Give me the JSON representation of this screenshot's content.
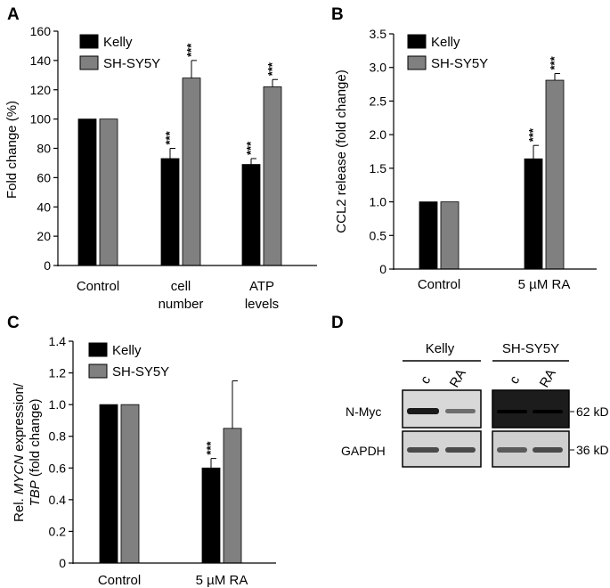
{
  "figure": {
    "series_colors": {
      "Kelly": "#000000",
      "SH-SY5Y": "#808080"
    },
    "significance_mark": "***"
  },
  "chart_data": [
    {
      "panel": "A",
      "type": "bar",
      "ylabel": "Fold change (%)",
      "ylim": [
        0,
        160
      ],
      "yticks": [
        "0",
        "20",
        "40",
        "60",
        "80",
        "100",
        "120",
        "140",
        "160"
      ],
      "categories": [
        [
          "Control"
        ],
        [
          "cell",
          "number"
        ],
        [
          "ATP",
          "levels"
        ]
      ],
      "legend": [
        "Kelly",
        "SH-SY5Y"
      ],
      "series": [
        {
          "name": "Kelly",
          "values": [
            100,
            73,
            69
          ],
          "errors": [
            0,
            7,
            4
          ],
          "stars": [
            "",
            "***",
            "***"
          ]
        },
        {
          "name": "SH-SY5Y",
          "values": [
            100,
            128,
            122
          ],
          "errors": [
            0,
            12,
            5
          ],
          "stars": [
            "",
            "***",
            "***"
          ]
        }
      ]
    },
    {
      "panel": "B",
      "type": "bar",
      "ylabel": "CCL2 release (fold change)",
      "ylim": [
        0,
        3.5
      ],
      "yticks": [
        "0",
        "0.5",
        "1.0",
        "1.5",
        "2.0",
        "2.5",
        "3.0",
        "3.5"
      ],
      "categories": [
        [
          "Control"
        ],
        [
          "5 µM RA"
        ]
      ],
      "legend": [
        "Kelly",
        "SH-SY5Y"
      ],
      "series": [
        {
          "name": "Kelly",
          "values": [
            1.0,
            1.64
          ],
          "errors": [
            0,
            0.2
          ],
          "stars": [
            "",
            "***"
          ]
        },
        {
          "name": "SH-SY5Y",
          "values": [
            1.0,
            2.81
          ],
          "errors": [
            0,
            0.1
          ],
          "stars": [
            "",
            "***"
          ]
        }
      ]
    },
    {
      "panel": "C",
      "type": "bar",
      "ylabel_line1": "Rel. MYCN expression/",
      "ylabel_line1_parts": [
        "Rel. ",
        "MYCN",
        " expression/"
      ],
      "ylabel_line2_parts": [
        "TBP",
        " (fold change)"
      ],
      "ylim": [
        0,
        1.4
      ],
      "yticks": [
        "0",
        "0.2",
        "0.4",
        "0.6",
        "0.8",
        "1.0",
        "1.2",
        "1.4"
      ],
      "categories": [
        [
          "Control"
        ],
        [
          "5 µM RA"
        ]
      ],
      "legend": [
        "Kelly",
        "SH-SY5Y"
      ],
      "series": [
        {
          "name": "Kelly",
          "values": [
            1.0,
            0.6
          ],
          "errors": [
            0,
            0.06
          ],
          "stars": [
            "",
            "***"
          ]
        },
        {
          "name": "SH-SY5Y",
          "values": [
            1.0,
            0.85
          ],
          "errors": [
            0,
            0.3
          ],
          "stars": [
            "",
            ""
          ]
        }
      ]
    }
  ],
  "panel_d": {
    "label": "D",
    "groups": [
      {
        "name": "Kelly",
        "lanes": [
          "c",
          "RA"
        ]
      },
      {
        "name": "SH-SY5Y",
        "lanes": [
          "c",
          "RA"
        ]
      }
    ],
    "rows": [
      "N-Myc",
      "GAPDH"
    ],
    "sizes": [
      "62 kD",
      "36 kD"
    ]
  }
}
